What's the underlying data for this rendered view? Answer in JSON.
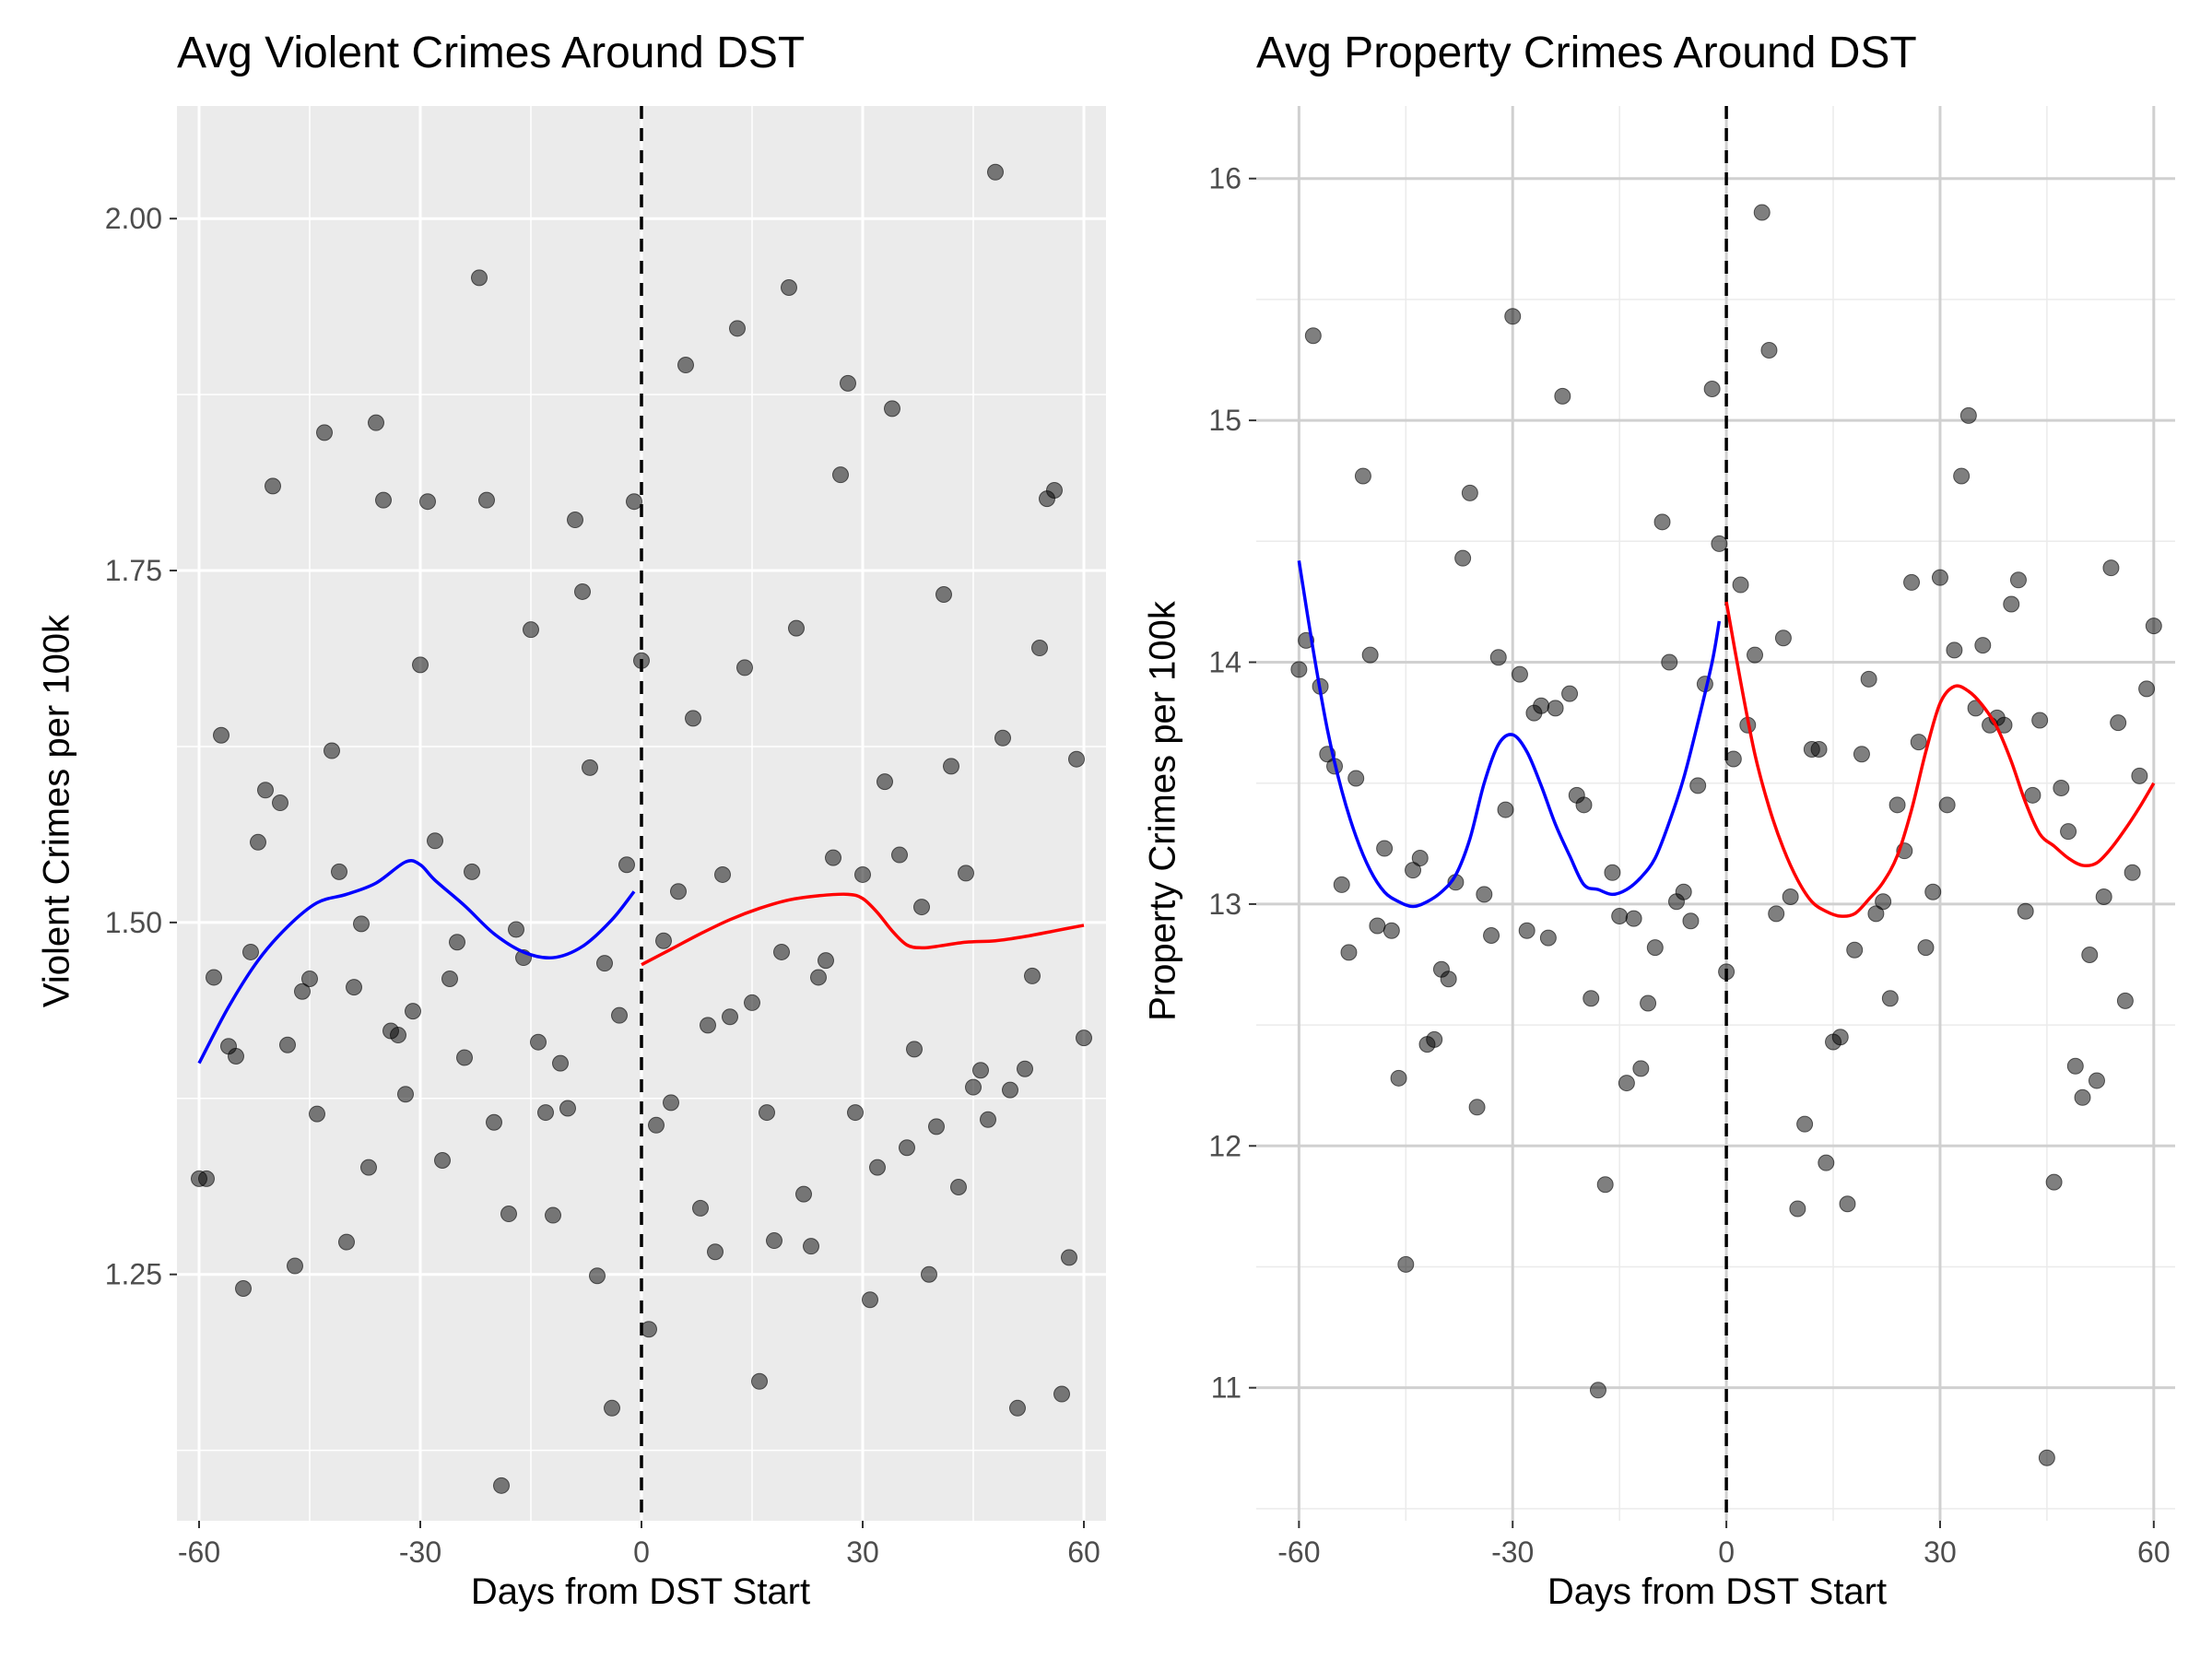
{
  "chart_data": [
    {
      "type": "scatter",
      "title": "Avg Violent Crimes Around DST",
      "xlabel": "Days from DST Start",
      "ylabel": "Violent Crimes per 100k",
      "xlim": [
        -63,
        63
      ],
      "ylim": [
        1.075,
        2.08
      ],
      "xticks": [
        -60,
        -30,
        0,
        30,
        60
      ],
      "xtick_labels": [
        "-60",
        "-30",
        "0",
        "30",
        "60"
      ],
      "yticks": [
        1.25,
        1.5,
        1.75,
        2.0
      ],
      "ytick_labels": [
        "1.25",
        "1.50",
        "1.75",
        "2.00"
      ],
      "theme": "grey",
      "grid": true,
      "vline": {
        "x": 0,
        "style": "dashed",
        "color": "#000000"
      },
      "points_color": "#000000",
      "points": [
        [
          -60,
          1.318
        ],
        [
          -59,
          1.318
        ],
        [
          -58,
          1.461
        ],
        [
          -57,
          1.633
        ],
        [
          -56,
          1.412
        ],
        [
          -55,
          1.405
        ],
        [
          -54,
          1.24
        ],
        [
          -53,
          1.479
        ],
        [
          -52,
          1.557
        ],
        [
          -51,
          1.594
        ],
        [
          -50,
          1.81
        ],
        [
          -49,
          1.585
        ],
        [
          -48,
          1.413
        ],
        [
          -47,
          1.256
        ],
        [
          -46,
          1.451
        ],
        [
          -45,
          1.46
        ],
        [
          -44,
          1.364
        ],
        [
          -43,
          1.848
        ],
        [
          -42,
          1.622
        ],
        [
          -41,
          1.536
        ],
        [
          -40,
          1.273
        ],
        [
          -39,
          1.454
        ],
        [
          -38,
          1.499
        ],
        [
          -37,
          1.326
        ],
        [
          -36,
          1.855
        ],
        [
          -35,
          1.8
        ],
        [
          -34,
          1.423
        ],
        [
          -33,
          1.42
        ],
        [
          -32,
          1.378
        ],
        [
          -31,
          1.437
        ],
        [
          -30,
          1.683
        ],
        [
          -29,
          1.799
        ],
        [
          -28,
          1.558
        ],
        [
          -27,
          1.331
        ],
        [
          -26,
          1.46
        ],
        [
          -25,
          1.486
        ],
        [
          -24,
          1.404
        ],
        [
          -23,
          1.536
        ],
        [
          -22,
          1.958
        ],
        [
          -21,
          1.8
        ],
        [
          -20,
          1.358
        ],
        [
          -19,
          1.1
        ],
        [
          -18,
          1.293
        ],
        [
          -17,
          1.495
        ],
        [
          -16,
          1.475
        ],
        [
          -15,
          1.708
        ],
        [
          -14,
          1.415
        ],
        [
          -13,
          1.365
        ],
        [
          -12,
          1.292
        ],
        [
          -11,
          1.4
        ],
        [
          -10,
          1.368
        ],
        [
          -9,
          1.786
        ],
        [
          -8,
          1.735
        ],
        [
          -7,
          1.61
        ],
        [
          -6,
          1.249
        ],
        [
          -5,
          1.471
        ],
        [
          -4,
          1.155
        ],
        [
          -3,
          1.434
        ],
        [
          -2,
          1.541
        ],
        [
          -1,
          1.799
        ],
        [
          0,
          1.686
        ],
        [
          1,
          1.211
        ],
        [
          2,
          1.356
        ],
        [
          3,
          1.487
        ],
        [
          4,
          1.372
        ],
        [
          5,
          1.522
        ],
        [
          6,
          1.896
        ],
        [
          7,
          1.645
        ],
        [
          8,
          1.297
        ],
        [
          9,
          1.427
        ],
        [
          10,
          1.266
        ],
        [
          11,
          1.534
        ],
        [
          12,
          1.433
        ],
        [
          13,
          1.922
        ],
        [
          14,
          1.681
        ],
        [
          15,
          1.443
        ],
        [
          16,
          1.174
        ],
        [
          17,
          1.365
        ],
        [
          18,
          1.274
        ],
        [
          19,
          1.479
        ],
        [
          20,
          1.951
        ],
        [
          21,
          1.709
        ],
        [
          22,
          1.307
        ],
        [
          23,
          1.27
        ],
        [
          24,
          1.461
        ],
        [
          25,
          1.473
        ],
        [
          26,
          1.546
        ],
        [
          27,
          1.818
        ],
        [
          28,
          1.883
        ],
        [
          29,
          1.365
        ],
        [
          30,
          1.534
        ],
        [
          31,
          1.232
        ],
        [
          32,
          1.326
        ],
        [
          33,
          1.6
        ],
        [
          34,
          1.865
        ],
        [
          35,
          1.548
        ],
        [
          36,
          1.34
        ],
        [
          37,
          1.41
        ],
        [
          38,
          1.511
        ],
        [
          39,
          1.25
        ],
        [
          40,
          1.355
        ],
        [
          41,
          1.733
        ],
        [
          42,
          1.611
        ],
        [
          43,
          1.312
        ],
        [
          44,
          1.535
        ],
        [
          45,
          1.383
        ],
        [
          46,
          1.395
        ],
        [
          47,
          1.36
        ],
        [
          48,
          2.033
        ],
        [
          49,
          1.631
        ],
        [
          50,
          1.381
        ],
        [
          51,
          1.155
        ],
        [
          52,
          1.396
        ],
        [
          53,
          1.462
        ],
        [
          54,
          1.695
        ],
        [
          55,
          1.801
        ],
        [
          56,
          1.807
        ],
        [
          57,
          1.165
        ],
        [
          58,
          1.262
        ],
        [
          59,
          1.616
        ],
        [
          60,
          1.418
        ]
      ],
      "series": [
        {
          "color": "#0000ff",
          "x": [
            -60,
            -56,
            -52,
            -48,
            -44,
            -40,
            -36,
            -32,
            -30,
            -28,
            -24,
            -20,
            -16,
            -12,
            -8,
            -4,
            -1
          ],
          "values": [
            1.4,
            1.44,
            1.473,
            1.497,
            1.514,
            1.52,
            1.528,
            1.543,
            1.541,
            1.53,
            1.512,
            1.492,
            1.479,
            1.475,
            1.483,
            1.502,
            1.522
          ]
        },
        {
          "color": "#ff0000",
          "x": [
            0,
            4,
            8,
            12,
            16,
            20,
            24,
            28,
            30,
            32,
            34,
            36,
            38,
            40,
            44,
            48,
            52,
            56,
            60
          ],
          "values": [
            1.47,
            1.481,
            1.492,
            1.502,
            1.51,
            1.516,
            1.519,
            1.52,
            1.517,
            1.507,
            1.494,
            1.484,
            1.482,
            1.483,
            1.486,
            1.487,
            1.49,
            1.494,
            1.498
          ]
        }
      ]
    },
    {
      "type": "scatter",
      "title": "Avg Property Crimes Around DST",
      "xlabel": "Days from DST Start",
      "ylabel": "Property Crimes per 100k",
      "xlim": [
        -66,
        63
      ],
      "ylim": [
        10.45,
        16.3
      ],
      "xticks": [
        -60,
        -30,
        0,
        30,
        60
      ],
      "xtick_labels": [
        "-60",
        "-30",
        "0",
        "30",
        "60"
      ],
      "yticks": [
        11,
        12,
        13,
        14,
        15,
        16
      ],
      "ytick_labels": [
        "11",
        "12",
        "13",
        "14",
        "15",
        "16"
      ],
      "theme": "minimal",
      "grid": true,
      "vline": {
        "x": 0,
        "style": "dashed",
        "color": "#000000"
      },
      "points_color": "#000000",
      "points": [
        [
          -60,
          13.97
        ],
        [
          -59,
          14.09
        ],
        [
          -58,
          15.35
        ],
        [
          -57,
          13.9
        ],
        [
          -56,
          13.62
        ],
        [
          -55,
          13.57
        ],
        [
          -54,
          13.08
        ],
        [
          -53,
          12.8
        ],
        [
          -52,
          13.52
        ],
        [
          -51,
          14.77
        ],
        [
          -50,
          14.03
        ],
        [
          -49,
          12.91
        ],
        [
          -48,
          13.23
        ],
        [
          -47,
          12.89
        ],
        [
          -46,
          12.28
        ],
        [
          -45,
          11.51
        ],
        [
          -44,
          13.14
        ],
        [
          -43,
          13.19
        ],
        [
          -42,
          12.42
        ],
        [
          -41,
          12.44
        ],
        [
          -40,
          12.73
        ],
        [
          -39,
          12.69
        ],
        [
          -38,
          13.09
        ],
        [
          -37,
          14.43
        ],
        [
          -36,
          14.7
        ],
        [
          -35,
          12.16
        ],
        [
          -34,
          13.04
        ],
        [
          -33,
          12.87
        ],
        [
          -32,
          14.02
        ],
        [
          -31,
          13.39
        ],
        [
          -30,
          15.43
        ],
        [
          -29,
          13.95
        ],
        [
          -28,
          12.89
        ],
        [
          -27,
          13.79
        ],
        [
          -26,
          13.82
        ],
        [
          -25,
          12.86
        ],
        [
          -24,
          13.81
        ],
        [
          -23,
          15.1
        ],
        [
          -22,
          13.87
        ],
        [
          -21,
          13.45
        ],
        [
          -20,
          13.41
        ],
        [
          -19,
          12.61
        ],
        [
          -18,
          10.99
        ],
        [
          -17,
          11.84
        ],
        [
          -16,
          13.13
        ],
        [
          -15,
          12.95
        ],
        [
          -14,
          12.26
        ],
        [
          -13,
          12.94
        ],
        [
          -12,
          12.32
        ],
        [
          -11,
          12.59
        ],
        [
          -10,
          12.82
        ],
        [
          -9,
          14.58
        ],
        [
          -8,
          14.0
        ],
        [
          -7,
          13.01
        ],
        [
          -6,
          13.05
        ],
        [
          -5,
          12.93
        ],
        [
          -4,
          13.49
        ],
        [
          -3,
          13.91
        ],
        [
          -2,
          15.13
        ],
        [
          -1,
          14.49
        ],
        [
          0,
          12.72
        ],
        [
          1,
          13.6
        ],
        [
          2,
          14.32
        ],
        [
          3,
          13.74
        ],
        [
          4,
          14.03
        ],
        [
          5,
          15.86
        ],
        [
          6,
          15.29
        ],
        [
          7,
          12.96
        ],
        [
          8,
          14.1
        ],
        [
          9,
          13.03
        ],
        [
          10,
          11.74
        ],
        [
          11,
          12.09
        ],
        [
          12,
          13.64
        ],
        [
          13,
          13.64
        ],
        [
          14,
          11.93
        ],
        [
          15,
          12.43
        ],
        [
          16,
          12.45
        ],
        [
          17,
          11.76
        ],
        [
          18,
          12.81
        ],
        [
          19,
          13.62
        ],
        [
          20,
          13.93
        ],
        [
          21,
          12.96
        ],
        [
          22,
          13.01
        ],
        [
          23,
          12.61
        ],
        [
          24,
          13.41
        ],
        [
          25,
          13.22
        ],
        [
          26,
          14.33
        ],
        [
          27,
          13.67
        ],
        [
          28,
          12.82
        ],
        [
          29,
          13.05
        ],
        [
          30,
          14.35
        ],
        [
          31,
          13.41
        ],
        [
          32,
          14.05
        ],
        [
          33,
          14.77
        ],
        [
          34,
          15.02
        ],
        [
          35,
          13.81
        ],
        [
          36,
          14.07
        ],
        [
          37,
          13.74
        ],
        [
          38,
          13.77
        ],
        [
          39,
          13.74
        ],
        [
          40,
          14.24
        ],
        [
          41,
          14.34
        ],
        [
          42,
          12.97
        ],
        [
          43,
          13.45
        ],
        [
          44,
          13.76
        ],
        [
          45,
          10.71
        ],
        [
          46,
          11.85
        ],
        [
          47,
          13.48
        ],
        [
          48,
          13.3
        ],
        [
          49,
          12.33
        ],
        [
          50,
          12.2
        ],
        [
          51,
          12.79
        ],
        [
          52,
          12.27
        ],
        [
          53,
          13.03
        ],
        [
          54,
          14.39
        ],
        [
          55,
          13.75
        ],
        [
          56,
          12.6
        ],
        [
          57,
          13.13
        ],
        [
          58,
          13.53
        ],
        [
          59,
          13.89
        ],
        [
          60,
          14.15
        ]
      ],
      "series": [
        {
          "color": "#0000ff",
          "x": [
            -60,
            -58,
            -56,
            -54,
            -52,
            -50,
            -48,
            -46,
            -44,
            -42,
            -40,
            -38,
            -36,
            -34,
            -32,
            -30,
            -28,
            -26,
            -24,
            -22,
            -20,
            -18,
            -16,
            -14,
            -12,
            -10,
            -8,
            -6,
            -4,
            -2,
            -1
          ],
          "values": [
            14.42,
            14.05,
            13.72,
            13.47,
            13.28,
            13.14,
            13.05,
            13.01,
            12.99,
            13.01,
            13.05,
            13.12,
            13.27,
            13.5,
            13.66,
            13.7,
            13.63,
            13.49,
            13.33,
            13.2,
            13.08,
            13.06,
            13.04,
            13.06,
            13.11,
            13.19,
            13.34,
            13.52,
            13.75,
            14.0,
            14.17
          ]
        },
        {
          "color": "#ff0000",
          "x": [
            0,
            2,
            4,
            6,
            8,
            10,
            12,
            14,
            16,
            18,
            20,
            22,
            24,
            26,
            28,
            30,
            32,
            34,
            36,
            38,
            40,
            42,
            44,
            46,
            48,
            50,
            52,
            54,
            56,
            58,
            60
          ],
          "values": [
            14.25,
            13.92,
            13.62,
            13.4,
            13.23,
            13.1,
            13.01,
            12.97,
            12.95,
            12.96,
            13.02,
            13.09,
            13.2,
            13.39,
            13.63,
            13.83,
            13.9,
            13.88,
            13.82,
            13.73,
            13.59,
            13.42,
            13.29,
            13.24,
            13.19,
            13.16,
            13.17,
            13.23,
            13.31,
            13.4,
            13.5
          ]
        }
      ]
    }
  ]
}
